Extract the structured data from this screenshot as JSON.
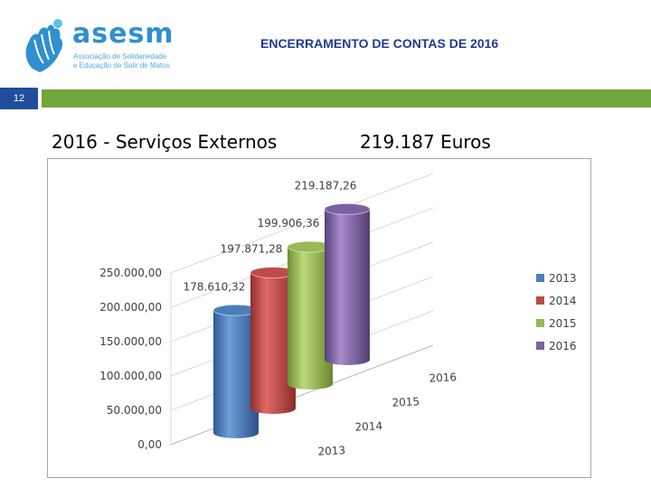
{
  "header": {
    "logo_word": "asesm",
    "logo_line1": "Associação de Solidariedade",
    "logo_line2": "e Educação de Salir de Matos",
    "title": "ENCERRAMENTO DE CONTAS DE 2016",
    "slide_number": "12"
  },
  "subtitle": {
    "left": "2016  -  Serviços Externos",
    "right": "219.187 Euros"
  },
  "colors": {
    "accent_blue": "#1f4e9c",
    "accent_green": "#70a83b",
    "title_blue": "#1f3a93"
  },
  "chart_data": {
    "type": "bar",
    "style": "3d-cylinder",
    "categories": [
      "2013",
      "2014",
      "2015",
      "2016"
    ],
    "values": [
      178610.32,
      197871.28,
      199906.36,
      219187.26
    ],
    "value_labels": [
      "178.610,32",
      "197.871,28",
      "199.906,36",
      "219.187,26"
    ],
    "series": [
      {
        "name": "2013",
        "color": "#4a7ebb"
      },
      {
        "name": "2014",
        "color": "#be4b48"
      },
      {
        "name": "2015",
        "color": "#98b954"
      },
      {
        "name": "2016",
        "color": "#7d60a0"
      }
    ],
    "y_ticks": [
      "0,00",
      "50.000,00",
      "100.000,00",
      "150.000,00",
      "200.000,00",
      "250.000,00"
    ],
    "y_tick_values": [
      0,
      50000,
      100000,
      150000,
      200000,
      250000
    ],
    "ylim": [
      0,
      250000
    ],
    "grid": true,
    "legend_position": "right"
  }
}
